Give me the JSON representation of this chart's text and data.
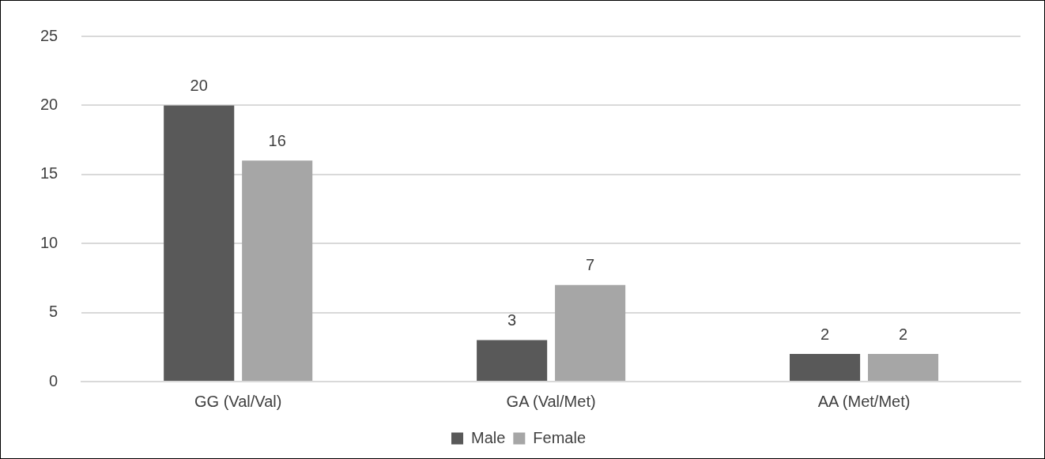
{
  "chart_data": {
    "type": "bar",
    "categories": [
      "GG (Val/Val)",
      "GA (Val/Met)",
      "AA (Met/Met)"
    ],
    "series": [
      {
        "name": "Male",
        "color": "#595959",
        "values": [
          20,
          3,
          2
        ]
      },
      {
        "name": "Female",
        "color": "#a6a6a6",
        "values": [
          16,
          7,
          2
        ]
      }
    ],
    "ylim": [
      0,
      25
    ],
    "yticks": [
      0,
      5,
      10,
      15,
      20,
      25
    ],
    "grid": "y",
    "legend": "bottom",
    "data_labels": true
  }
}
